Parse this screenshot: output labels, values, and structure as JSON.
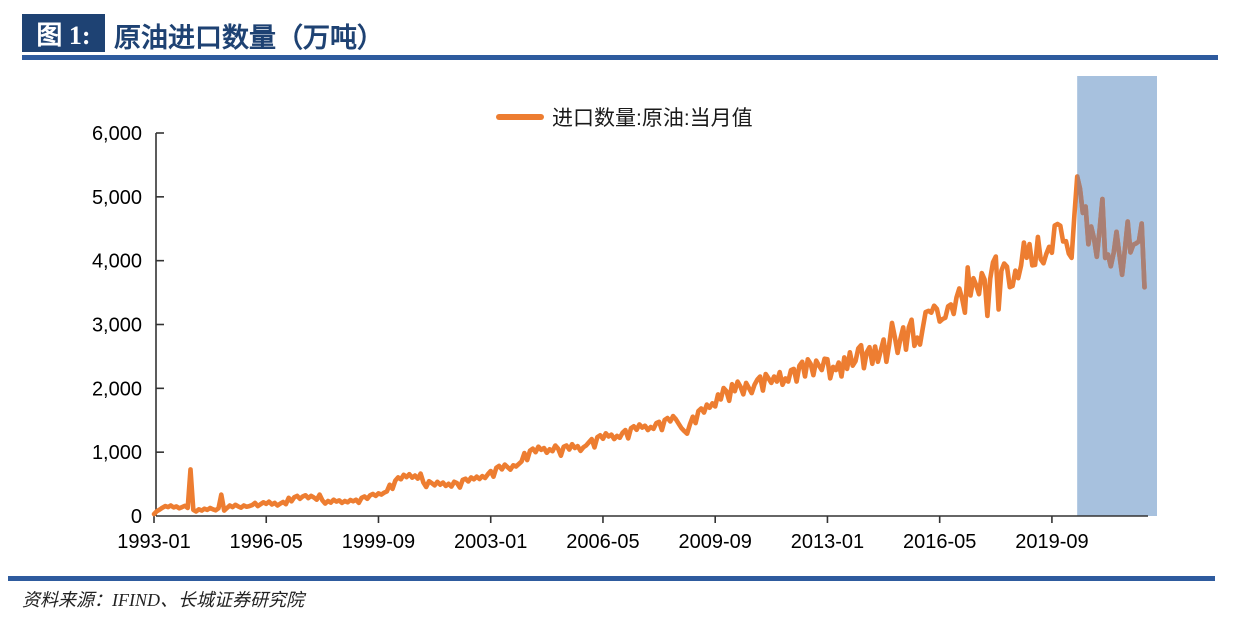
{
  "figure": {
    "label": "图 1:",
    "title": "原油进口数量（万吨）"
  },
  "source": {
    "text": "资料来源：IFIND、长城证券研究院"
  },
  "colors": {
    "title_navy": "#1E4273",
    "rule_blue": "#2E5B9E",
    "series_orange": "#ED7D31",
    "series_in_highlight": "#A97F74",
    "highlight_fill": "#A7C1DE",
    "axis": "#333333"
  },
  "chart_data": {
    "type": "line",
    "title": "原油进口数量（万吨）",
    "xlabel": "",
    "ylabel": "",
    "unit": "万吨",
    "ylim": [
      0,
      6000
    ],
    "y_tick_labels": [
      "0",
      "1,000",
      "2,000",
      "3,000",
      "4,000",
      "5,000",
      "6,000"
    ],
    "x_tick_labels": [
      "1993-01",
      "1996-05",
      "1999-09",
      "2003-01",
      "2006-05",
      "2009-09",
      "2013-01",
      "2016-05",
      "2019-09"
    ],
    "x_tick_interval_months": 40,
    "grid": false,
    "legend": {
      "label": "进口数量:原油:当月值",
      "position": "top-center"
    },
    "highlight_region": {
      "start": "2020-06",
      "note": "light blue shaded band over most recent period"
    },
    "series": [
      {
        "name": "进口数量:原油:当月值",
        "start": "1993-01",
        "freq": "monthly",
        "unit": "万吨",
        "values": [
          30,
          75,
          100,
          130,
          155,
          140,
          165,
          135,
          150,
          120,
          140,
          160,
          125,
          730,
          95,
          70,
          105,
          85,
          115,
          95,
          125,
          105,
          90,
          120,
          335,
          85,
          125,
          165,
          140,
          175,
          150,
          130,
          165,
          145,
          155,
          170,
          205,
          155,
          185,
          215,
          190,
          225,
          180,
          205,
          165,
          195,
          220,
          185,
          285,
          230,
          295,
          315,
          270,
          305,
          325,
          280,
          315,
          290,
          255,
          335,
          245,
          195,
          235,
          210,
          255,
          225,
          245,
          205,
          235,
          215,
          250,
          230,
          255,
          205,
          285,
          305,
          270,
          325,
          345,
          315,
          355,
          335,
          365,
          385,
          490,
          425,
          555,
          605,
          575,
          645,
          610,
          655,
          600,
          635,
          585,
          665,
          525,
          455,
          545,
          515,
          480,
          535,
          490,
          525,
          470,
          505,
          460,
          535,
          515,
          445,
          565,
          585,
          540,
          605,
          575,
          615,
          580,
          625,
          595,
          655,
          705,
          615,
          755,
          785,
          730,
          805,
          765,
          725,
          795,
          775,
          815,
          855,
          985,
          875,
          1025,
          1055,
          1000,
          1085,
          1035,
          1065,
          990,
          1045,
          1015,
          1105,
          1055,
          945,
          1085,
          1105,
          1040,
          1125,
          1065,
          1095,
          1020,
          1075,
          1105,
          1155,
          1205,
          1075,
          1235,
          1265,
          1210,
          1295,
          1245,
          1275,
          1205,
          1255,
          1225,
          1305,
          1345,
          1215,
          1375,
          1405,
          1350,
          1435,
          1385,
          1415,
          1345,
          1395,
          1365,
          1455,
          1475,
          1345,
          1505,
          1535,
          1480,
          1565,
          1515,
          1445,
          1375,
          1330,
          1290,
          1435,
          1555,
          1455,
          1645,
          1685,
          1620,
          1745,
          1695,
          1765,
          1715,
          1905,
          1825,
          2005,
          1955,
          1805,
          2065,
          1955,
          2105,
          2025,
          1905,
          2085,
          2005,
          1925,
          2055,
          2135,
          2185,
          1965,
          2225,
          2155,
          2085,
          2185,
          2105,
          2255,
          2055,
          2155,
          2105,
          2285,
          2305,
          2105,
          2355,
          2415,
          2185,
          2455,
          2385,
          2205,
          2435,
          2355,
          2285,
          2465,
          2455,
          2155,
          2335,
          2285,
          2405,
          2185,
          2485,
          2305,
          2565,
          2355,
          2425,
          2625,
          2675,
          2315,
          2565,
          2645,
          2385,
          2655,
          2415,
          2595,
          2765,
          2415,
          2685,
          3025,
          2805,
          2555,
          2775,
          2955,
          2605,
          2955,
          3075,
          2665,
          2795,
          2685,
          2945,
          3195,
          3215,
          3185,
          3295,
          3245,
          3045,
          3085,
          3105,
          3285,
          3315,
          3165,
          3425,
          3565,
          3405,
          3185,
          3895,
          3455,
          3725,
          3615,
          3475,
          3805,
          3705,
          3135,
          3715,
          3975,
          4065,
          3235,
          3845,
          3955,
          3905,
          3585,
          3605,
          3845,
          3725,
          3925,
          4285,
          4045,
          4260,
          3926,
          3934,
          4373,
          4023,
          3958,
          4104,
          4217,
          4124,
          4551,
          4574,
          4548,
          4300,
          4305,
          4110,
          4043,
          4714,
          5318,
          5129,
          4748,
          4848,
          4256,
          4536,
          4348,
          4060,
          4480,
          4966,
          4043,
          4097,
          3911,
          4124,
          4453,
          4105,
          3779,
          4179,
          4614,
          4130,
          4250,
          4271,
          4303,
          4582,
          3582
        ]
      }
    ]
  }
}
